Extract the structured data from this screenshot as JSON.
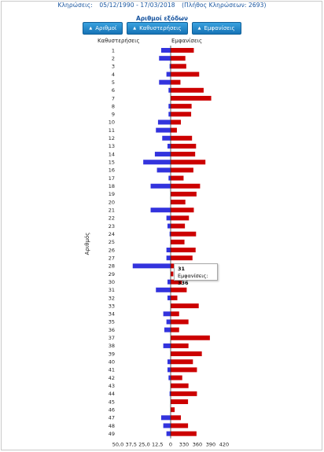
{
  "header": {
    "label": "Κληρώσεις:",
    "range": "05/12/1990 - 17/03/2018",
    "total": "(Πλήθος Κληρώσεων: 2693)"
  },
  "chart_data": {
    "type": "bar",
    "title": "Αριθμοί εξόδων",
    "ylabel": "Αριθμός",
    "left_label": "Καθυστερήσεις",
    "right_label": "Εμφανίσεις",
    "categories": [
      "1",
      "2",
      "3",
      "4",
      "5",
      "6",
      "7",
      "8",
      "9",
      "10",
      "11",
      "12",
      "13",
      "14",
      "15",
      "16",
      "17",
      "18",
      "19",
      "20",
      "21",
      "22",
      "23",
      "24",
      "25",
      "26",
      "27",
      "28",
      "29",
      "30",
      "31",
      "32",
      "33",
      "34",
      "35",
      "36",
      "37",
      "38",
      "39",
      "40",
      "41",
      "42",
      "43",
      "44",
      "45",
      "46",
      "47",
      "48",
      "49"
    ],
    "series": [
      {
        "name": "Καθυστερήσεις",
        "color": "#3333dd",
        "values": [
          9,
          11,
          1,
          4,
          11,
          2,
          0,
          2,
          2,
          12,
          14,
          8,
          3,
          15,
          26,
          13,
          2,
          19,
          0,
          0,
          19,
          4,
          3,
          1,
          0,
          4,
          4,
          36,
          0,
          3,
          14,
          3,
          0,
          7,
          4,
          6,
          0,
          7,
          0,
          3,
          3,
          2,
          0,
          1,
          0,
          0,
          9,
          7,
          4
        ]
      },
      {
        "name": "Εμφανίσεις",
        "color": "#cc0000",
        "values": [
          352,
          333,
          335,
          364,
          322,
          374,
          391,
          347,
          346,
          323,
          314,
          348,
          357,
          355,
          378,
          351,
          329,
          366,
          358,
          333,
          352,
          341,
          332,
          357,
          331,
          356,
          349,
          316,
          306,
          325,
          336,
          315,
          363,
          319,
          340,
          319,
          388,
          340,
          370,
          350,
          359,
          326,
          340,
          359,
          339,
          309,
          323,
          339,
          358
        ]
      }
    ],
    "xticks": [
      "50,0",
      "37,5",
      "25,0",
      "12,5",
      "0",
      "330",
      "360",
      "390",
      "420"
    ],
    "tooltip": {
      "number": "31",
      "label": "Εμφανίσεις:",
      "value": "336"
    }
  },
  "buttons": [
    {
      "label": "Αριθμοί",
      "icon": "sort-icon"
    },
    {
      "label": "Καθυστερήσεις",
      "icon": "sort-icon"
    },
    {
      "label": "Εμφανίσεις",
      "icon": "sort-icon"
    }
  ]
}
